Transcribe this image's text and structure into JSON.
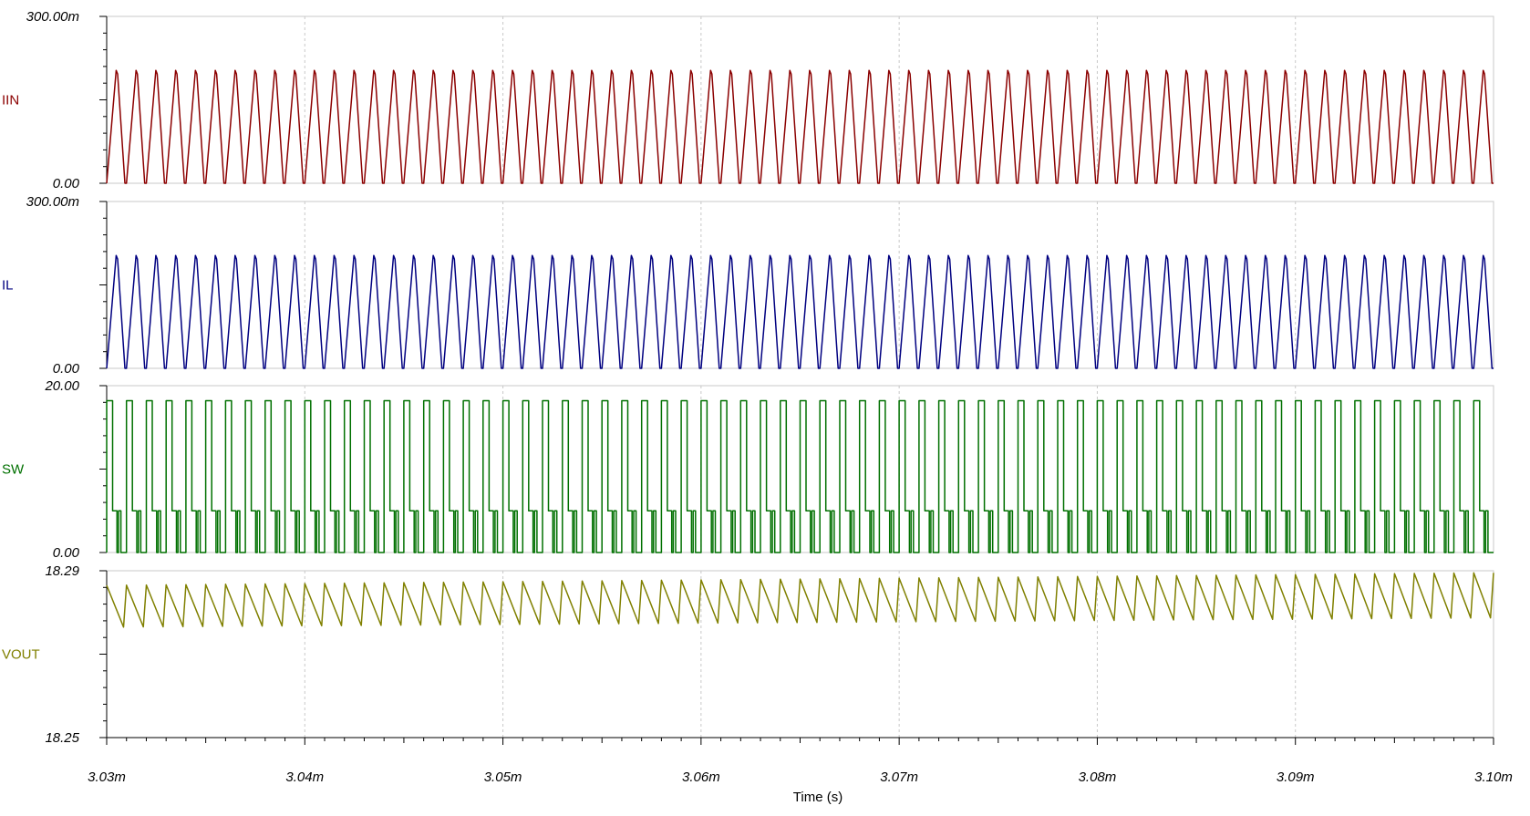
{
  "chart_data": {
    "type": "line",
    "x_axis": {
      "label": "Time (s)",
      "range": [
        3.03,
        3.1
      ],
      "units": "ms",
      "tick_values": [
        3.03,
        3.04,
        3.05,
        3.06,
        3.07,
        3.08,
        3.09,
        3.1
      ],
      "tick_labels": [
        "3.03m",
        "3.04m",
        "3.05m",
        "3.06m",
        "3.07m",
        "3.08m",
        "3.09m",
        "3.10m"
      ],
      "grid": true
    },
    "cycles": 70,
    "panels": [
      {
        "name": "IIN",
        "color": "#8b0000",
        "ylim": [
          0,
          300
        ],
        "units": "mA",
        "y_top_label": "300.00m",
        "y_bottom_label": "0.00",
        "waveform": "pulsed current",
        "peak": 203,
        "min": 0
      },
      {
        "name": "IL",
        "color": "#000080",
        "ylim": [
          0,
          300
        ],
        "units": "mA",
        "y_top_label": "300.00m",
        "y_bottom_label": "0.00",
        "waveform": "triangular current",
        "peak": 203,
        "min": 0
      },
      {
        "name": "SW",
        "color": "#007000",
        "ylim": [
          0,
          20
        ],
        "units": "V",
        "y_top_label": "20.00",
        "y_bottom_label": "0.00",
        "waveform": "switch node",
        "high": 18.2,
        "ring": 5.0,
        "low": 0
      },
      {
        "name": "VOUT",
        "color": "#808000",
        "ylim": [
          18.25,
          18.29
        ],
        "units": "V",
        "y_top_label": "18.29",
        "y_bottom_label": "18.25",
        "waveform": "output ripple",
        "start_peak": 18.2865,
        "start_trough": 18.2765,
        "end_peak": 18.2895,
        "end_trough": 18.2787
      }
    ]
  }
}
